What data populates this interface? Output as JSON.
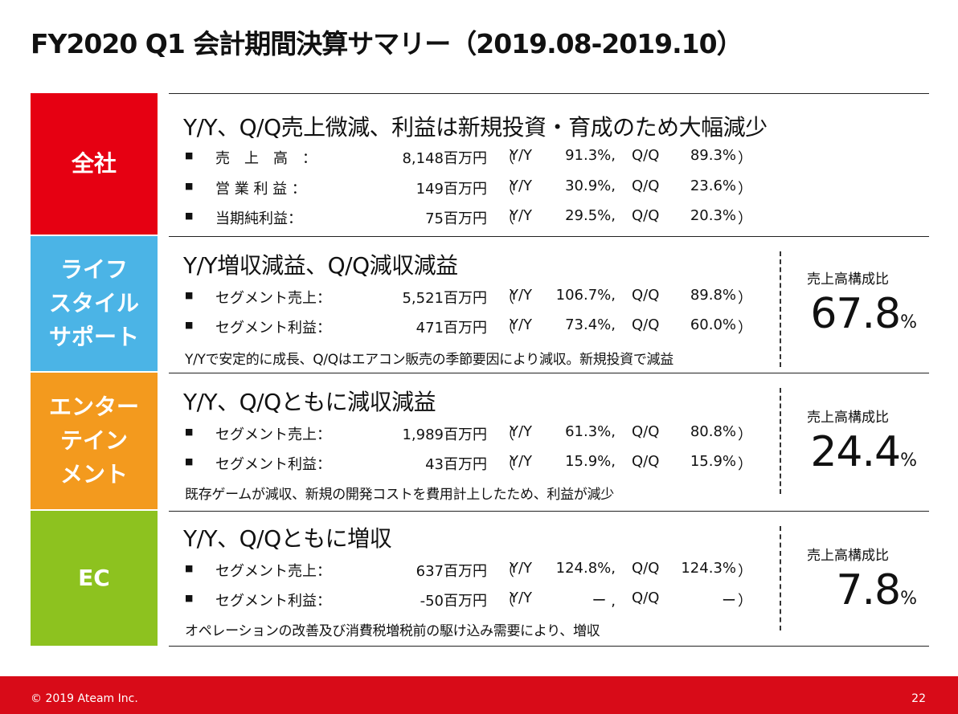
{
  "title": "FY2020 Q1 会計期間決算サマリー（2019.08-2019.10）",
  "colors": {
    "zensha": "#e60012",
    "lifestyle": "#4bb4e6",
    "entertainment": "#f39a1e",
    "ec": "#8dc21f",
    "footer": "#d80b18"
  },
  "sections": [
    {
      "label": "全社",
      "headline": "Y/Y、Q/Q売上微減、利益は新規投資・育成のため大幅減少",
      "rows": [
        {
          "bullet": "■",
          "label": "売　上　高　：",
          "amount": "8,148百万円",
          "open": "（",
          "yy": "Y/Y",
          "yv": "91.3%,",
          "qq": "Q/Q",
          "qv": "89.3%",
          "close": "）"
        },
        {
          "bullet": "■",
          "label": "営 業 利 益 ：",
          "amount": "149百万円",
          "open": "（",
          "yy": "Y/Y",
          "yv": "30.9%,",
          "qq": "Q/Q",
          "qv": "23.6%",
          "close": "）"
        },
        {
          "bullet": "■",
          "label": "当期純利益：",
          "amount": "75百万円",
          "open": "（",
          "yy": "Y/Y",
          "yv": "29.5%,",
          "qq": "Q/Q",
          "qv": "20.3%",
          "close": "）"
        }
      ]
    },
    {
      "label": "ライフスタイルサポート",
      "label_lines": [
        "ライフ",
        "スタイル",
        "サポート"
      ],
      "headline": "Y/Y増収減益、Q/Q減収減益",
      "rows": [
        {
          "bullet": "■",
          "label": "セグメント売上：",
          "amount": "5,521百万円",
          "open": "（",
          "yy": "Y/Y",
          "yv": "106.7%,",
          "qq": "Q/Q",
          "qv": "89.8%",
          "close": "）"
        },
        {
          "bullet": "■",
          "label": "セグメント利益：",
          "amount": "471百万円",
          "open": "（",
          "yy": "Y/Y",
          "yv": "73.4%,",
          "qq": "Q/Q",
          "qv": "60.0%",
          "close": "）"
        }
      ],
      "note": "Y/Yで安定的に成長、Q/Qはエアコン販売の季節要因により減収。新規投資で減益",
      "ratio_label": "売上高構成比",
      "ratio_value": "67.8",
      "ratio_unit": "%"
    },
    {
      "label": "エンターテインメント",
      "label_lines": [
        "エンター",
        "テイン",
        "メント"
      ],
      "headline": "Y/Y、Q/Qともに減収減益",
      "rows": [
        {
          "bullet": "■",
          "label": "セグメント売上：",
          "amount": "1,989百万円",
          "open": "（",
          "yy": "Y/Y",
          "yv": "61.3%,",
          "qq": "Q/Q",
          "qv": "80.8%",
          "close": "）"
        },
        {
          "bullet": "■",
          "label": "セグメント利益：",
          "amount": "43百万円",
          "open": "（",
          "yy": "Y/Y",
          "yv": "15.9%,",
          "qq": "Q/Q",
          "qv": "15.9%",
          "close": "）"
        }
      ],
      "note": "既存ゲームが減収、新規の開発コストを費用計上したため、利益が減少",
      "ratio_label": "売上高構成比",
      "ratio_value": "24.4",
      "ratio_unit": "%"
    },
    {
      "label": "EC",
      "headline": "Y/Y、Q/Qともに増収",
      "rows": [
        {
          "bullet": "■",
          "label": "セグメント売上：",
          "amount": "637百万円",
          "open": "（",
          "yy": "Y/Y",
          "yv": "124.8%,",
          "qq": "Q/Q",
          "qv": "124.3%",
          "close": "）"
        },
        {
          "bullet": "■",
          "label": "セグメント利益：",
          "amount": "-50百万円",
          "open": "（",
          "yy": "Y/Y",
          "yv": "ー ,",
          "qq": "Q/Q",
          "qv": "ー",
          "close": "）"
        }
      ],
      "note": "オペレーションの改善及び消費税増税前の駆け込み需要により、増収",
      "ratio_label": "売上高構成比",
      "ratio_value": "7.8",
      "ratio_unit": "%"
    }
  ],
  "footer": {
    "copyright": "© 2019 Ateam Inc.",
    "page": "22"
  }
}
